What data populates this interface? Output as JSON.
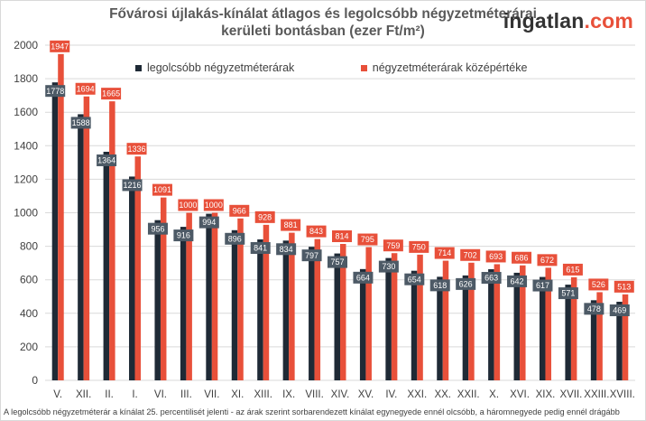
{
  "title": {
    "line1": "Fővárosi újlakás-kínálat átlagos és legolcsóbb négyzetméterárai",
    "line2": "kerületi bontásban (ezer Ft/m²)"
  },
  "brand": {
    "main": "ingatlan",
    "accent": ".com"
  },
  "footnote": "A legolcsóbb négyzetméterár a kínálat 25. percentilisét jelenti - az árak szerint sorbarendezett kínálat egynegyede ennél olcsóbb, a háromnegyede pedig ennél drágább",
  "colors": {
    "cheapest": "#1f2a36",
    "median": "#e8503a",
    "cheapest_label_bg": "#4d5a66",
    "grid": "#d9d9d9",
    "axis_text": "#404040"
  },
  "chart_data": {
    "type": "bar",
    "categories": [
      "V.",
      "XII.",
      "II.",
      "I.",
      "VI.",
      "III.",
      "VII.",
      "XI.",
      "XIII.",
      "IX.",
      "VIII.",
      "XIV.",
      "XV.",
      "IV.",
      "XXI.",
      "XX.",
      "XXII.",
      "X.",
      "XVI.",
      "XIX.",
      "XVII.",
      "XXIII.",
      "XVIII."
    ],
    "series": [
      {
        "name": "legolcsóbb négyzetméterárak",
        "values": [
          1778,
          1588,
          1364,
          1216,
          956,
          916,
          994,
          896,
          841,
          834,
          797,
          757,
          664,
          730,
          654,
          618,
          626,
          663,
          642,
          617,
          571,
          478,
          469
        ]
      },
      {
        "name": "négyzetméterárak középértéke",
        "values": [
          1947,
          1694,
          1665,
          1336,
          1091,
          1000,
          1000,
          966,
          928,
          881,
          843,
          814,
          795,
          759,
          750,
          714,
          702,
          693,
          686,
          672,
          615,
          526,
          513
        ]
      }
    ],
    "ylim": [
      0,
      2000
    ],
    "yticks": [
      0,
      200,
      400,
      600,
      800,
      1000,
      1200,
      1400,
      1600,
      1800,
      2000
    ],
    "grid": true,
    "legend": "top"
  }
}
